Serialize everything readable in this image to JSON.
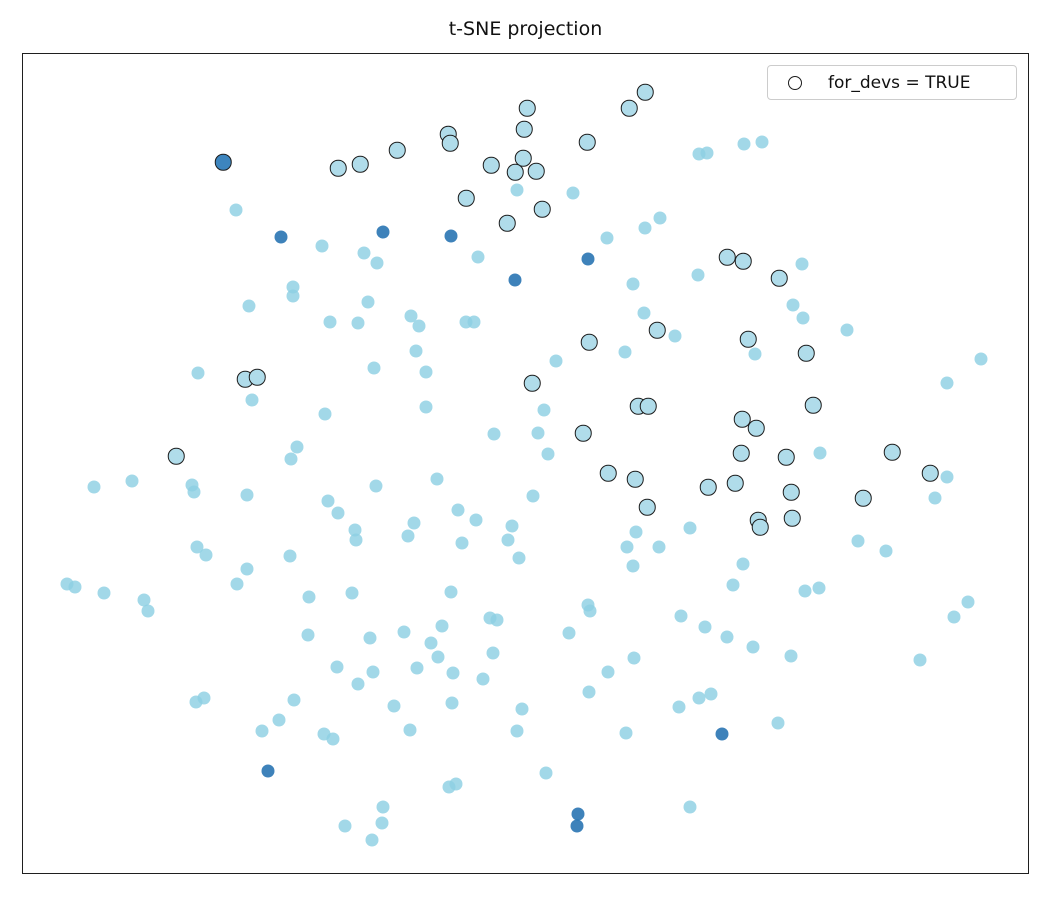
{
  "title": "t-SNE projection",
  "legend": {
    "label": "for_devs = TRUE",
    "marker": "open-black-circle"
  },
  "colors": {
    "point_light": "#a3d8e9",
    "point_dark": "#2e7ab6",
    "outlined_fill": "#b0dcea",
    "outline_edge": "#1c1c1c",
    "frame": "#1f1f1f"
  },
  "chart_data": {
    "type": "scatter",
    "title": "t-SNE projection",
    "xlabel": "",
    "ylabel": "",
    "tick_labels": "none (bare frame, no axis ticks)",
    "legend_position": "upper right",
    "coords_note": "pixel coordinates on a 1050x900 canvas; plot frame spans x 22-1029, y 53-874",
    "legend": [
      {
        "label": "for_devs = TRUE",
        "marker": "open black circle"
      }
    ],
    "series": [
      {
        "name": "documents",
        "style": "light",
        "color": "#a3d8e9",
        "points": [
          [
            236,
            210
          ],
          [
            322,
            246
          ],
          [
            293,
            287
          ],
          [
            293,
            296
          ],
          [
            249,
            306
          ],
          [
            330,
            322
          ],
          [
            358,
            323
          ],
          [
            517,
            190
          ],
          [
            573,
            193
          ],
          [
            660,
            218
          ],
          [
            645,
            228
          ],
          [
            607,
            238
          ],
          [
            364,
            253
          ],
          [
            377,
            263
          ],
          [
            478,
            257
          ],
          [
            633,
            284
          ],
          [
            368,
            302
          ],
          [
            411,
            316
          ],
          [
            419,
            326
          ],
          [
            466,
            322
          ],
          [
            474,
            322
          ],
          [
            644,
            313
          ],
          [
            698,
            275
          ],
          [
            699,
            154
          ],
          [
            707,
            153
          ],
          [
            744,
            144
          ],
          [
            762,
            142
          ],
          [
            802,
            264
          ],
          [
            793,
            305
          ],
          [
            803,
            318
          ],
          [
            847,
            330
          ],
          [
            198,
            373
          ],
          [
            252,
            400
          ],
          [
            325,
            414
          ],
          [
            297,
            447
          ],
          [
            291,
            459
          ],
          [
            94,
            487
          ],
          [
            132,
            481
          ],
          [
            192,
            485
          ],
          [
            194,
            492
          ],
          [
            247,
            495
          ],
          [
            328,
            501
          ],
          [
            338,
            513
          ],
          [
            197,
            547
          ],
          [
            206,
            555
          ],
          [
            247,
            569
          ],
          [
            237,
            584
          ],
          [
            290,
            556
          ],
          [
            67,
            584
          ],
          [
            75,
            587
          ],
          [
            104,
            593
          ],
          [
            144,
            600
          ],
          [
            148,
            611
          ],
          [
            309,
            597
          ],
          [
            352,
            593
          ],
          [
            416,
            351
          ],
          [
            374,
            368
          ],
          [
            426,
            372
          ],
          [
            556,
            361
          ],
          [
            625,
            352
          ],
          [
            675,
            336
          ],
          [
            426,
            407
          ],
          [
            544,
            410
          ],
          [
            494,
            434
          ],
          [
            538,
            433
          ],
          [
            548,
            454
          ],
          [
            437,
            479
          ],
          [
            376,
            486
          ],
          [
            533,
            496
          ],
          [
            458,
            510
          ],
          [
            476,
            520
          ],
          [
            414,
            523
          ],
          [
            408,
            536
          ],
          [
            355,
            530
          ],
          [
            356,
            540
          ],
          [
            462,
            543
          ],
          [
            512,
            526
          ],
          [
            508,
            540
          ],
          [
            519,
            558
          ],
          [
            636,
            532
          ],
          [
            627,
            547
          ],
          [
            659,
            547
          ],
          [
            633,
            566
          ],
          [
            690,
            528
          ],
          [
            451,
            592
          ],
          [
            755,
            354
          ],
          [
            981,
            359
          ],
          [
            947,
            383
          ],
          [
            820,
            453
          ],
          [
            947,
            477
          ],
          [
            935,
            498
          ],
          [
            858,
            541
          ],
          [
            886,
            551
          ],
          [
            743,
            564
          ],
          [
            733,
            585
          ],
          [
            805,
            591
          ],
          [
            819,
            588
          ],
          [
            968,
            602
          ],
          [
            308,
            635
          ],
          [
            337,
            667
          ],
          [
            358,
            684
          ],
          [
            196,
            702
          ],
          [
            204,
            698
          ],
          [
            294,
            700
          ],
          [
            279,
            720
          ],
          [
            262,
            731
          ],
          [
            324,
            734
          ],
          [
            333,
            739
          ],
          [
            345,
            826
          ],
          [
            370,
            638
          ],
          [
            404,
            632
          ],
          [
            442,
            626
          ],
          [
            490,
            618
          ],
          [
            497,
            620
          ],
          [
            588,
            605
          ],
          [
            590,
            611
          ],
          [
            569,
            633
          ],
          [
            681,
            616
          ],
          [
            431,
            643
          ],
          [
            438,
            657
          ],
          [
            493,
            653
          ],
          [
            373,
            672
          ],
          [
            417,
            668
          ],
          [
            453,
            673
          ],
          [
            483,
            679
          ],
          [
            634,
            658
          ],
          [
            608,
            672
          ],
          [
            589,
            692
          ],
          [
            394,
            706
          ],
          [
            452,
            703
          ],
          [
            522,
            709
          ],
          [
            679,
            707
          ],
          [
            699,
            698
          ],
          [
            711,
            694
          ],
          [
            410,
            730
          ],
          [
            517,
            731
          ],
          [
            626,
            733
          ],
          [
            546,
            773
          ],
          [
            449,
            787
          ],
          [
            456,
            784
          ],
          [
            383,
            807
          ],
          [
            382,
            823
          ],
          [
            372,
            840
          ],
          [
            690,
            807
          ],
          [
            705,
            627
          ],
          [
            727,
            637
          ],
          [
            753,
            647
          ],
          [
            791,
            656
          ],
          [
            920,
            660
          ],
          [
            954,
            617
          ],
          [
            778,
            723
          ]
        ]
      },
      {
        "name": "documents-dark",
        "style": "dark",
        "color": "#2e7ab6",
        "points": [
          [
            281,
            237
          ],
          [
            383,
            232
          ],
          [
            451,
            236
          ],
          [
            515,
            280
          ],
          [
            588,
            259
          ],
          [
            268,
            771
          ],
          [
            722,
            734
          ],
          [
            578,
            814
          ],
          [
            577,
            826
          ]
        ]
      },
      {
        "name": "for_devs-true",
        "style": "outlined",
        "fill": "#b0dcea",
        "edge": "#1c1c1c",
        "points": [
          [
            338,
            168
          ],
          [
            360,
            164
          ],
          [
            397,
            150
          ],
          [
            448,
            134
          ],
          [
            450,
            143
          ],
          [
            645,
            92
          ],
          [
            629,
            108
          ],
          [
            527,
            108
          ],
          [
            524,
            129
          ],
          [
            587,
            142
          ],
          [
            523,
            158
          ],
          [
            491,
            165
          ],
          [
            515,
            172
          ],
          [
            536,
            171
          ],
          [
            466,
            198
          ],
          [
            542,
            209
          ],
          [
            507,
            223
          ],
          [
            727,
            257
          ],
          [
            743,
            261
          ],
          [
            779,
            278
          ],
          [
            657,
            330
          ],
          [
            589,
            342
          ],
          [
            532,
            383
          ],
          [
            638,
            406
          ],
          [
            648,
            406
          ],
          [
            583,
            433
          ],
          [
            608,
            473
          ],
          [
            635,
            479
          ],
          [
            647,
            507
          ],
          [
            245,
            379
          ],
          [
            257,
            377
          ],
          [
            176,
            456
          ],
          [
            748,
            339
          ],
          [
            806,
            353
          ],
          [
            813,
            405
          ],
          [
            742,
            419
          ],
          [
            756,
            428
          ],
          [
            741,
            453
          ],
          [
            786,
            457
          ],
          [
            892,
            452
          ],
          [
            930,
            473
          ],
          [
            708,
            487
          ],
          [
            735,
            483
          ],
          [
            791,
            492
          ],
          [
            863,
            498
          ],
          [
            792,
            518
          ],
          [
            758,
            520
          ],
          [
            760,
            527
          ]
        ]
      },
      {
        "name": "for_devs-true-dark",
        "style": "outlined-dark",
        "fill": "#3d85be",
        "edge": "#1c1c1c",
        "points": [
          [
            223,
            162
          ]
        ]
      }
    ]
  }
}
